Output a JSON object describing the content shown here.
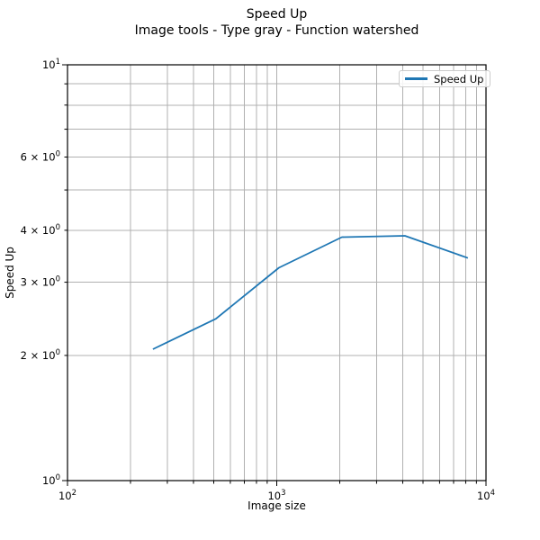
{
  "chart_data": {
    "type": "line",
    "title": "Speed Up",
    "subtitle": "Image tools - Type gray - Function watershed",
    "xlabel": "Image size",
    "ylabel": "Speed Up",
    "xscale": "log",
    "yscale": "log",
    "xlim": [
      100,
      10000
    ],
    "ylim": [
      1,
      10
    ],
    "grid": {
      "which": "both",
      "color": "#b0b0b0"
    },
    "axis_color": "#000000",
    "series": [
      {
        "name": "Speed Up",
        "color": "#1f77b4",
        "x": [
          256,
          512,
          1024,
          2048,
          4096,
          8192
        ],
        "y": [
          2.07,
          2.45,
          3.25,
          3.85,
          3.88,
          3.43
        ]
      }
    ],
    "x_ticks_major": [
      {
        "value": 100,
        "label": "10^2"
      },
      {
        "value": 1000,
        "label": "10^3"
      },
      {
        "value": 10000,
        "label": "10^4"
      }
    ],
    "x_ticks_minor": [
      200,
      300,
      400,
      500,
      600,
      700,
      800,
      900,
      2000,
      3000,
      4000,
      5000,
      6000,
      7000,
      8000,
      9000
    ],
    "y_ticks_major": [
      {
        "value": 1,
        "label": "10^0"
      },
      {
        "value": 10,
        "label": "10^1"
      }
    ],
    "y_ticks_minor_labeled": [
      {
        "value": 2,
        "label": "2 × 10^0"
      },
      {
        "value": 3,
        "label": "3 × 10^0"
      },
      {
        "value": 4,
        "label": "4 × 10^0"
      },
      {
        "value": 6,
        "label": "6 × 10^0"
      }
    ],
    "y_ticks_minor_unlabeled": [
      5,
      7,
      8,
      9
    ],
    "legend": {
      "label": "Speed Up",
      "position": "upper right"
    }
  }
}
